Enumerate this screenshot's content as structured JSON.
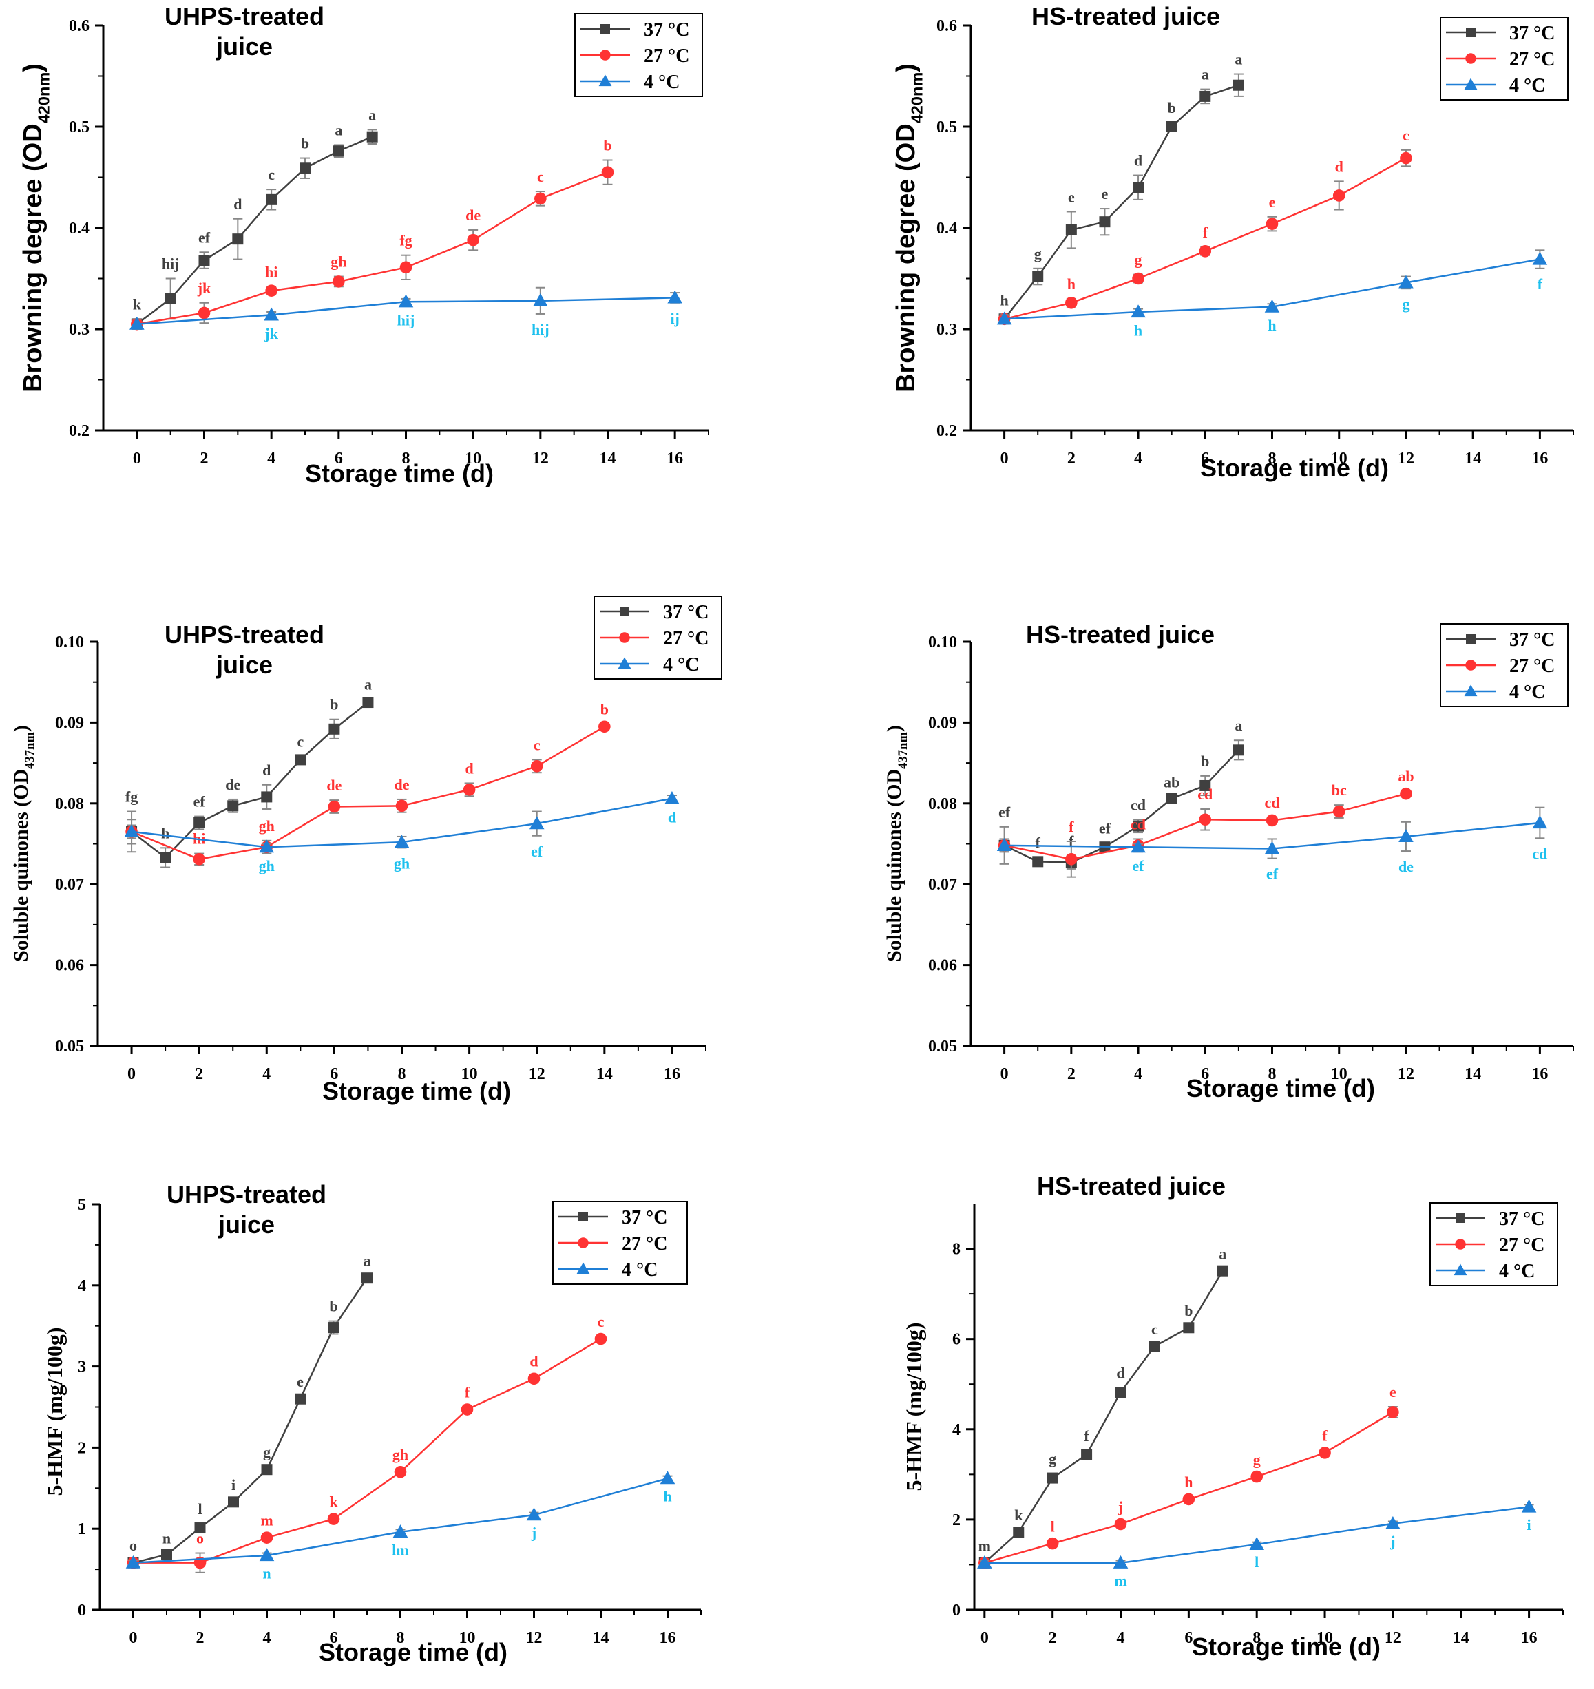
{
  "figure": {
    "series_styles": [
      {
        "key": "s37",
        "color": "#404040",
        "marker": "square"
      },
      {
        "key": "s27",
        "color": "#ff3333",
        "marker": "circle"
      },
      {
        "key": "s4",
        "color": "#1f7fd6",
        "marker": "triangle",
        "label_color": "#1ec0ee"
      }
    ]
  },
  "chart_data": [
    {
      "type": "line",
      "id": "p1",
      "title": "UHPS-treated\njuice",
      "xlabel": "Storage time (d)",
      "ylabel_main": "Browning degree (OD",
      "ylabel_sub": "420nm",
      "ylabel_end": ")",
      "xlim": [
        -1,
        17
      ],
      "ylim": [
        0.2,
        0.6
      ],
      "xticks": [
        0,
        2,
        4,
        6,
        8,
        10,
        12,
        14,
        16
      ],
      "yticks": [
        0.2,
        0.3,
        0.4,
        0.5,
        0.6
      ],
      "ytick_labels": [
        "0.2",
        "0.3",
        "0.4",
        "0.5",
        "0.6"
      ],
      "legend": [
        "37 °C",
        "27 °C",
        "4 °C"
      ],
      "series": [
        {
          "name": "37 °C",
          "x": [
            0,
            1,
            2,
            3,
            4,
            5,
            6,
            7
          ],
          "y": [
            0.305,
            0.33,
            0.368,
            0.389,
            0.428,
            0.459,
            0.476,
            0.49
          ],
          "err": [
            0.005,
            0.02,
            0.008,
            0.02,
            0.01,
            0.01,
            0.006,
            0.007
          ],
          "labels": [
            "k",
            "hij",
            "ef",
            "d",
            "c",
            "b",
            "a",
            "a"
          ]
        },
        {
          "name": "27 °C",
          "x": [
            0,
            2,
            4,
            6,
            8,
            10,
            12,
            14
          ],
          "y": [
            0.305,
            0.316,
            0.338,
            0.347,
            0.361,
            0.388,
            0.429,
            0.455
          ],
          "err": [
            0.005,
            0.01,
            0.004,
            0.005,
            0.012,
            0.01,
            0.007,
            0.012
          ],
          "labels": [
            "",
            "jk",
            "hi",
            "gh",
            "fg",
            "de",
            "c",
            "b"
          ]
        },
        {
          "name": "4 °C",
          "x": [
            0,
            4,
            8,
            12,
            16
          ],
          "y": [
            0.305,
            0.314,
            0.327,
            0.328,
            0.331
          ],
          "err": [
            0.005,
            0.003,
            0.003,
            0.013,
            0.005
          ],
          "labels": [
            "",
            "jk",
            "hij",
            "hij",
            "ij"
          ]
        }
      ]
    },
    {
      "type": "line",
      "id": "p2",
      "title": "HS-treated juice",
      "xlabel": "Storage time (d)",
      "ylabel_main": "Browning degree (OD",
      "ylabel_sub": "420nm",
      "ylabel_end": ")",
      "xlim": [
        -1,
        17
      ],
      "ylim": [
        0.2,
        0.6
      ],
      "xticks": [
        0,
        2,
        4,
        6,
        8,
        10,
        12,
        14,
        16
      ],
      "yticks": [
        0.2,
        0.3,
        0.4,
        0.5,
        0.6
      ],
      "ytick_labels": [
        "0.2",
        "0.3",
        "0.4",
        "0.5",
        "0.6"
      ],
      "legend": [
        "37 °C",
        "27 °C",
        "4 °C"
      ],
      "series": [
        {
          "name": "37 °C",
          "x": [
            0,
            1,
            2,
            3,
            4,
            5,
            6,
            7
          ],
          "y": [
            0.31,
            0.352,
            0.398,
            0.406,
            0.44,
            0.5,
            0.53,
            0.541
          ],
          "err": [
            0.004,
            0.008,
            0.018,
            0.013,
            0.012,
            0.004,
            0.007,
            0.011
          ],
          "labels": [
            "h",
            "g",
            "e",
            "e",
            "d",
            "b",
            "a",
            "a"
          ]
        },
        {
          "name": "27 °C",
          "x": [
            0,
            2,
            4,
            6,
            8,
            10,
            12
          ],
          "y": [
            0.31,
            0.326,
            0.35,
            0.377,
            0.404,
            0.432,
            0.469
          ],
          "err": [
            0.004,
            0.004,
            0.004,
            0.004,
            0.007,
            0.014,
            0.008
          ],
          "labels": [
            "",
            "h",
            "g",
            "f",
            "e",
            "d",
            "c"
          ]
        },
        {
          "name": "4 °C",
          "x": [
            0,
            4,
            8,
            12,
            16
          ],
          "y": [
            0.31,
            0.317,
            0.322,
            0.346,
            0.369
          ],
          "err": [
            0.004,
            0.003,
            0.003,
            0.006,
            0.009
          ],
          "labels": [
            "",
            "h",
            "h",
            "g",
            "f"
          ]
        }
      ]
    },
    {
      "type": "line",
      "id": "p3",
      "title": "UHPS-treated\njuice",
      "xlabel": "Storage time (d)",
      "ylabel_main": "Soluble quinones (OD",
      "ylabel_sub": "437nm",
      "ylabel_end": ")",
      "xlim": [
        -1,
        17
      ],
      "ylim": [
        0.05,
        0.1
      ],
      "xticks": [
        0,
        2,
        4,
        6,
        8,
        10,
        12,
        14,
        16
      ],
      "yticks": [
        0.05,
        0.06,
        0.07,
        0.08,
        0.09,
        0.1
      ],
      "ytick_labels": [
        "0.05",
        "0.06",
        "0.07",
        "0.08",
        "0.09",
        "0.10"
      ],
      "legend": [
        "37 °C",
        "27 °C",
        "4 °C"
      ],
      "series": [
        {
          "name": "37 °C",
          "x": [
            0,
            1,
            2,
            3,
            4,
            5,
            6,
            7
          ],
          "y": [
            0.0765,
            0.0733,
            0.0776,
            0.0797,
            0.0808,
            0.0854,
            0.0892,
            0.0925
          ],
          "err": [
            0.0025,
            0.0012,
            0.0008,
            0.0008,
            0.0015,
            0.0004,
            0.0012,
            0.0004
          ],
          "labels": [
            "fg",
            "h",
            "ef",
            "de",
            "d",
            "c",
            "b",
            "a"
          ]
        },
        {
          "name": "27 °C",
          "x": [
            0,
            2,
            4,
            6,
            8,
            10,
            12,
            14
          ],
          "y": [
            0.0765,
            0.0731,
            0.0746,
            0.0796,
            0.0797,
            0.0817,
            0.0846,
            0.0895
          ],
          "err": [
            0.0008,
            0.0007,
            0.0008,
            0.0008,
            0.0008,
            0.0008,
            0.0008,
            0.0003
          ],
          "labels": [
            "",
            "hi",
            "gh",
            "de",
            "de",
            "d",
            "c",
            "b"
          ]
        },
        {
          "name": "4 °C",
          "x": [
            0,
            4,
            8,
            12,
            16
          ],
          "y": [
            0.0765,
            0.0746,
            0.0752,
            0.0775,
            0.0806
          ],
          "err": [
            0.0015,
            0.0004,
            0.0007,
            0.0015,
            0.0004
          ],
          "labels": [
            "",
            "gh",
            "gh",
            "ef",
            "d"
          ]
        }
      ]
    },
    {
      "type": "line",
      "id": "p4",
      "title": "HS-treated juice",
      "xlabel": "Storage time (d)",
      "ylabel_main": "Soluble quinones (OD",
      "ylabel_sub": "437nm",
      "ylabel_end": ")",
      "xlim": [
        -1,
        17
      ],
      "ylim": [
        0.05,
        0.1
      ],
      "xticks": [
        0,
        2,
        4,
        6,
        8,
        10,
        12,
        14,
        16
      ],
      "yticks": [
        0.05,
        0.06,
        0.07,
        0.08,
        0.09,
        0.1
      ],
      "ytick_labels": [
        "0.05",
        "0.06",
        "0.07",
        "0.08",
        "0.09",
        "0.10"
      ],
      "legend": [
        "37 °C",
        "27 °C",
        "4 °C"
      ],
      "series": [
        {
          "name": "37 °C",
          "x": [
            0,
            1,
            2,
            3,
            4,
            5,
            6,
            7
          ],
          "y": [
            0.0748,
            0.0728,
            0.0727,
            0.0746,
            0.0772,
            0.0806,
            0.0822,
            0.0866
          ],
          "err": [
            0.0023,
            0.0005,
            0.0008,
            0.0005,
            0.0008,
            0.0002,
            0.0012,
            0.0012
          ],
          "labels": [
            "ef",
            "f",
            "f",
            "ef",
            "cd",
            "ab",
            "b",
            "a"
          ]
        },
        {
          "name": "27 °C",
          "x": [
            0,
            2,
            4,
            6,
            8,
            10,
            12
          ],
          "y": [
            0.0748,
            0.0731,
            0.0748,
            0.078,
            0.0779,
            0.079,
            0.0812
          ],
          "err": [
            0.0008,
            0.0022,
            0.0008,
            0.0013,
            0.0004,
            0.0008,
            0.0003
          ],
          "labels": [
            "",
            "f",
            "cd",
            "cd",
            "cd",
            "bc",
            "ab"
          ]
        },
        {
          "name": "4 °C",
          "x": [
            0,
            4,
            8,
            12,
            16
          ],
          "y": [
            0.0748,
            0.0746,
            0.0744,
            0.0759,
            0.0776
          ],
          "err": [
            0.0008,
            0.0004,
            0.0012,
            0.0018,
            0.0019
          ],
          "labels": [
            "",
            "ef",
            "ef",
            "de",
            "cd"
          ]
        }
      ]
    },
    {
      "type": "line",
      "id": "p5",
      "title": "UHPS-treated\njuice",
      "xlabel": "Storage time (d)",
      "ylabel_main": "5-HMF (mg/100g)",
      "ylabel_sub": "",
      "ylabel_end": "",
      "xlim": [
        -1,
        17
      ],
      "ylim": [
        0,
        5
      ],
      "xticks": [
        0,
        2,
        4,
        6,
        8,
        10,
        12,
        14,
        16
      ],
      "yticks": [
        0,
        1,
        2,
        3,
        4,
        5
      ],
      "ytick_labels": [
        "0",
        "1",
        "2",
        "3",
        "4",
        "5"
      ],
      "legend": [
        "37 °C",
        "27 °C",
        "4 °C"
      ],
      "series": [
        {
          "name": "37 °C",
          "x": [
            0,
            1,
            2,
            3,
            4,
            5,
            6,
            7
          ],
          "y": [
            0.58,
            0.68,
            1.01,
            1.33,
            1.73,
            2.6,
            3.48,
            4.09
          ],
          "err": [
            0.03,
            0.02,
            0.05,
            0.03,
            0.03,
            0.03,
            0.08,
            0.03
          ],
          "labels": [
            "o",
            "n",
            "l",
            "i",
            "g",
            "e",
            "b",
            "a"
          ]
        },
        {
          "name": "27 °C",
          "x": [
            0,
            2,
            4,
            6,
            8,
            10,
            12,
            14
          ],
          "y": [
            0.58,
            0.58,
            0.89,
            1.12,
            1.7,
            2.47,
            2.85,
            3.34
          ],
          "err": [
            0.03,
            0.12,
            0.03,
            0.03,
            0.03,
            0.03,
            0.03,
            0.03
          ],
          "labels": [
            "",
            "o",
            "m",
            "k",
            "gh",
            "f",
            "d",
            "c"
          ]
        },
        {
          "name": "4 °C",
          "x": [
            0,
            4,
            8,
            12,
            16
          ],
          "y": [
            0.58,
            0.67,
            0.96,
            1.17,
            1.62
          ],
          "err": [
            0.03,
            0.03,
            0.03,
            0.03,
            0.03
          ],
          "labels": [
            "",
            "n",
            "lm",
            "j",
            "h"
          ]
        }
      ]
    },
    {
      "type": "line",
      "id": "p6",
      "title": "HS-treated juice",
      "xlabel": "Storage time (d)",
      "ylabel_main": "5-HMF (mg/100g)",
      "ylabel_sub": "",
      "ylabel_end": "",
      "xlim": [
        -0.3,
        17
      ],
      "ylim": [
        0,
        9
      ],
      "xticks": [
        0,
        2,
        4,
        6,
        8,
        10,
        12,
        14,
        16
      ],
      "yticks": [
        0,
        2,
        4,
        6,
        8
      ],
      "ytick_labels": [
        "0",
        "2",
        "4",
        "6",
        "8"
      ],
      "legend": [
        "37 °C",
        "27 °C",
        "4 °C"
      ],
      "series": [
        {
          "name": "37 °C",
          "x": [
            0,
            1,
            2,
            3,
            4,
            5,
            6,
            7
          ],
          "y": [
            1.04,
            1.72,
            2.92,
            3.44,
            4.82,
            5.84,
            6.25,
            7.51
          ],
          "err": [
            0.05,
            0.05,
            0.1,
            0.08,
            0.1,
            0.05,
            0.05,
            0.05
          ],
          "labels": [
            "m",
            "k",
            "g",
            "f",
            "d",
            "c",
            "b",
            "a"
          ]
        },
        {
          "name": "27 °C",
          "x": [
            0,
            2,
            4,
            6,
            8,
            10,
            12
          ],
          "y": [
            1.04,
            1.47,
            1.9,
            2.45,
            2.95,
            3.48,
            4.38
          ],
          "err": [
            0.05,
            0.05,
            0.05,
            0.05,
            0.05,
            0.05,
            0.12
          ],
          "labels": [
            "",
            "l",
            "j",
            "h",
            "g",
            "f",
            "e"
          ]
        },
        {
          "name": "4 °C",
          "x": [
            0,
            4,
            8,
            12,
            16
          ],
          "y": [
            1.04,
            1.04,
            1.45,
            1.91,
            2.28
          ],
          "err": [
            0.05,
            0.05,
            0.05,
            0.05,
            0.05
          ],
          "labels": [
            "",
            "m",
            "l",
            "j",
            "i"
          ]
        }
      ]
    }
  ]
}
